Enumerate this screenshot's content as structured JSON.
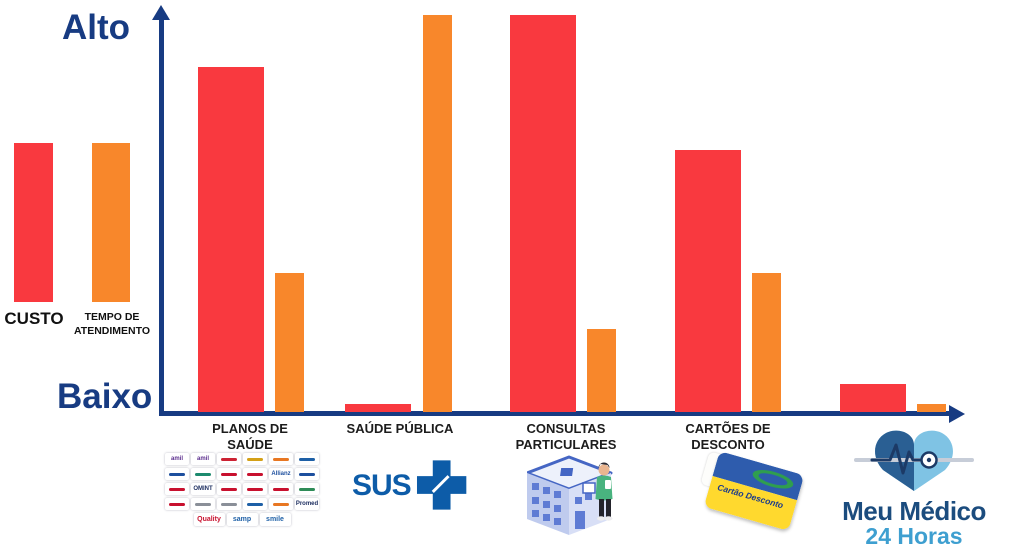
{
  "axis": {
    "high_label": "Alto",
    "low_label": "Baixo",
    "color": "#173B82"
  },
  "legend": {
    "cost_label": "CUSTO",
    "time_label": "TEMPO DE ATENDIMENTO",
    "cost_color": "#F9393F",
    "time_color": "#F8872B"
  },
  "chart_data": {
    "type": "bar",
    "title": "",
    "categories": [
      "PLANOS DE SAÚDE",
      "SAÚDE PÚBLICA",
      "CONSULTAS PARTICULARES",
      "CARTÕES DE DESCONTO",
      "MEU MÉDICO 24 HORAS"
    ],
    "category_label_lines": [
      [
        "PLANOS DE",
        "SAÚDE"
      ],
      [
        "SAÚDE PÚBLICA"
      ],
      [
        "CONSULTAS",
        "PARTICULARES"
      ],
      [
        "CARTÕES DE",
        "DESCONTO"
      ]
    ],
    "series": [
      {
        "name": "CUSTO",
        "color": "#F9393F",
        "values": [
          87,
          2,
          100,
          66,
          7
        ]
      },
      {
        "name": "TEMPO DE ATENDIMENTO",
        "color": "#F8872B",
        "values": [
          35,
          100,
          21,
          35,
          2
        ]
      }
    ],
    "value_scale": "qualitative, percent of axis height (Baixo = 0, Alto = 100)",
    "ylim": [
      0,
      100
    ],
    "yaxis_qualitative_labels": [
      "Baixo",
      "Alto"
    ],
    "grid": false,
    "legend_position": "left of y-axis"
  },
  "icons": {
    "sus": {
      "text": "SUS",
      "color": "#0D5CA8"
    },
    "clinic": {
      "name": "clinic-building-with-doctor"
    },
    "discount_card": {
      "text": "Cartão Desconto",
      "text_color": "#1A3A8C"
    },
    "brand": {
      "line1": "Meu Médico",
      "line2": "24 Horas",
      "line1_color": "#1B4C7E",
      "line2_color": "#3E9FD0"
    }
  },
  "insurers": {
    "rows": [
      [
        {
          "t": "amil",
          "c": "#5B2E8E"
        },
        {
          "t": "amil",
          "c": "#5B2E8E"
        },
        {
          "t": "",
          "c": "#CC2233"
        },
        {
          "t": "",
          "c": "#D4A017"
        },
        {
          "t": "",
          "c": "#E87722"
        },
        {
          "t": "",
          "c": "#1D5FA6"
        }
      ],
      [
        {
          "t": "",
          "c": "#1D4F9E"
        },
        {
          "t": "",
          "c": "#1C8A6E"
        },
        {
          "t": "",
          "c": "#C8102E"
        },
        {
          "t": "",
          "c": "#C8102E"
        },
        {
          "t": "Allianz",
          "c": "#1D4F9E"
        },
        {
          "t": "",
          "c": "#1D4F9E"
        }
      ],
      [
        {
          "t": "",
          "c": "#C8102E"
        },
        {
          "t": "OMINT",
          "c": "#1A2B5E"
        },
        {
          "t": "",
          "c": "#C8102E"
        },
        {
          "t": "",
          "c": "#C8102E"
        },
        {
          "t": "",
          "c": "#C8102E"
        },
        {
          "t": "",
          "c": "#2E8B57"
        }
      ],
      [
        {
          "t": "",
          "c": "#C8102E"
        },
        {
          "t": "",
          "c": "#8A8F98"
        },
        {
          "t": "",
          "c": "#8A8F98"
        },
        {
          "t": "",
          "c": "#1D5FA6"
        },
        {
          "t": "",
          "c": "#E87722"
        },
        {
          "t": "Promed",
          "c": "#1A2B5E"
        }
      ]
    ],
    "bottom_row": [
      {
        "t": "Quality",
        "c": "#C8102E"
      },
      {
        "t": "samp",
        "c": "#1D5FA6"
      },
      {
        "t": "smile",
        "c": "#1D5FA6"
      }
    ]
  }
}
